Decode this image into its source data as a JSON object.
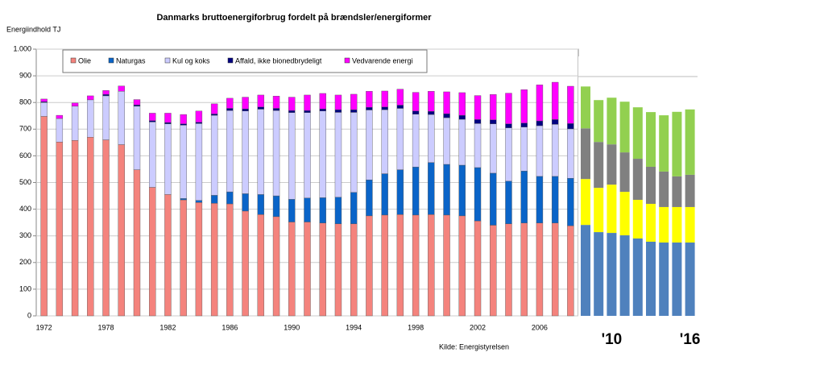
{
  "chart_data": [
    {
      "type": "stacked_bar",
      "title": "Danmarks bruttoenergiforbrug fordelt på brændsler/energiformer",
      "y_label": "Energiindhold TJ",
      "source": "Kilde: Energistyrelsen",
      "categories": [
        "1972",
        null,
        null,
        null,
        "1978",
        null,
        null,
        null,
        "1982",
        null,
        null,
        null,
        "1986",
        null,
        null,
        null,
        "1990",
        null,
        null,
        null,
        "1994",
        null,
        null,
        null,
        "1998",
        null,
        null,
        null,
        "2002",
        null,
        null,
        null,
        "2006",
        null,
        null
      ],
      "ylim": [
        0,
        1000
      ],
      "yticks": [
        0,
        100,
        200,
        300,
        400,
        500,
        600,
        700,
        800,
        900,
        {
          "value": 1000,
          "label": "1.000"
        }
      ],
      "grid": true,
      "legend": "top",
      "series": [
        {
          "name": "Olie",
          "color": "#f4837d",
          "values": [
            748,
            652,
            658,
            670,
            660,
            642,
            548,
            482,
            455,
            435,
            425,
            422,
            420,
            393,
            380,
            372,
            352,
            352,
            348,
            345,
            345,
            375,
            378,
            380,
            378,
            380,
            378,
            375,
            356,
            340,
            345,
            348,
            348,
            348,
            338
          ]
        },
        {
          "name": "Naturgas",
          "color": "#0a64c8",
          "values": [
            0,
            0,
            0,
            0,
            0,
            0,
            0,
            0,
            0,
            5,
            8,
            30,
            45,
            65,
            75,
            78,
            85,
            90,
            95,
            100,
            118,
            135,
            155,
            168,
            180,
            195,
            190,
            190,
            200,
            195,
            160,
            195,
            175,
            175,
            178
          ]
        },
        {
          "name": "Kul og koks",
          "color": "#ccccff",
          "values": [
            52,
            88,
            128,
            140,
            165,
            200,
            238,
            245,
            265,
            275,
            288,
            300,
            305,
            310,
            320,
            320,
            325,
            320,
            325,
            318,
            300,
            262,
            240,
            230,
            198,
            180,
            175,
            172,
            165,
            185,
            200,
            165,
            190,
            195,
            185
          ]
        },
        {
          "name": "Affald, ikke bionedbrydeligt",
          "color": "#000080",
          "values": [
            3,
            0,
            0,
            0,
            5,
            0,
            5,
            5,
            5,
            5,
            5,
            5,
            8,
            8,
            8,
            8,
            8,
            8,
            8,
            10,
            10,
            10,
            10,
            12,
            12,
            12,
            15,
            15,
            15,
            15,
            15,
            15,
            18,
            18,
            20
          ]
        },
        {
          "name": "Vedvarende energi",
          "color": "#ff00ff",
          "values": [
            10,
            12,
            12,
            15,
            15,
            20,
            20,
            28,
            35,
            35,
            42,
            38,
            38,
            44,
            45,
            46,
            50,
            58,
            58,
            55,
            58,
            60,
            60,
            60,
            70,
            75,
            82,
            85,
            90,
            95,
            115,
            125,
            135,
            140,
            140
          ]
        }
      ]
    },
    {
      "type": "stacked_bar",
      "categories": [
        null,
        null,
        "'10",
        null,
        null,
        null,
        null,
        null,
        "'16"
      ],
      "ylim": [
        0,
        1000
      ],
      "series": [
        {
          "color": "#4f81bd",
          "values": [
            341,
            314,
            311,
            302,
            290,
            278,
            275,
            275,
            275
          ]
        },
        {
          "color": "#ffff00",
          "values": [
            172,
            166,
            181,
            163,
            145,
            142,
            133,
            133,
            133
          ]
        },
        {
          "color": "#808080",
          "values": [
            190,
            172,
            151,
            148,
            154,
            139,
            133,
            115,
            121
          ]
        },
        {
          "color": "#92d050",
          "values": [
            157,
            157,
            175,
            190,
            193,
            205,
            211,
            242,
            245
          ]
        }
      ]
    }
  ]
}
